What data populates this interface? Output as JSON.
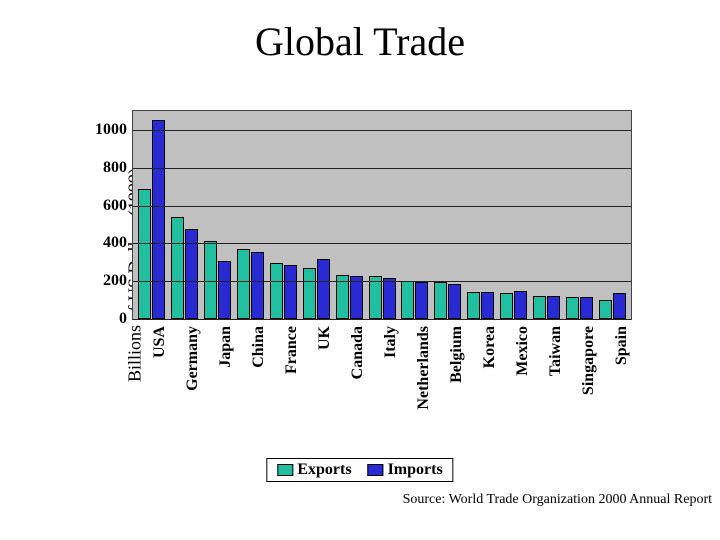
{
  "title": "Global Trade",
  "ylabel": "Billions of US Dollars (1999)",
  "source": "Source: World Trade Organization 2000 Annual Report",
  "chart": {
    "type": "bar",
    "background_color": "#c0c0c0",
    "grid_color": "#222222",
    "border_color": "#444444",
    "ylim": [
      0,
      1100
    ],
    "yticks": [
      0,
      200,
      400,
      600,
      800,
      1000
    ],
    "series": [
      {
        "name": "Exports",
        "color": "#1fbf9f"
      },
      {
        "name": "Imports",
        "color": "#2a2ad4"
      }
    ],
    "categories": [
      "USA",
      "Germany",
      "Japan",
      "China",
      "France",
      "UK",
      "Canada",
      "Italy",
      "Netherlands",
      "Belgium",
      "Korea",
      "Mexico",
      "Taiwan",
      "Singapore",
      "Spain"
    ],
    "data": {
      "Exports": [
        690,
        540,
        415,
        370,
        295,
        270,
        235,
        230,
        200,
        195,
        145,
        140,
        120,
        115,
        100
      ],
      "Imports": [
        1055,
        475,
        305,
        355,
        285,
        320,
        225,
        215,
        195,
        185,
        145,
        150,
        120,
        115,
        135
      ]
    },
    "bar_border": "#000000",
    "tick_fontsize": 16,
    "tick_fontweight": "bold",
    "title_fontsize": 40,
    "legend_border": "#000000",
    "legend_bg": "#ffffff"
  }
}
